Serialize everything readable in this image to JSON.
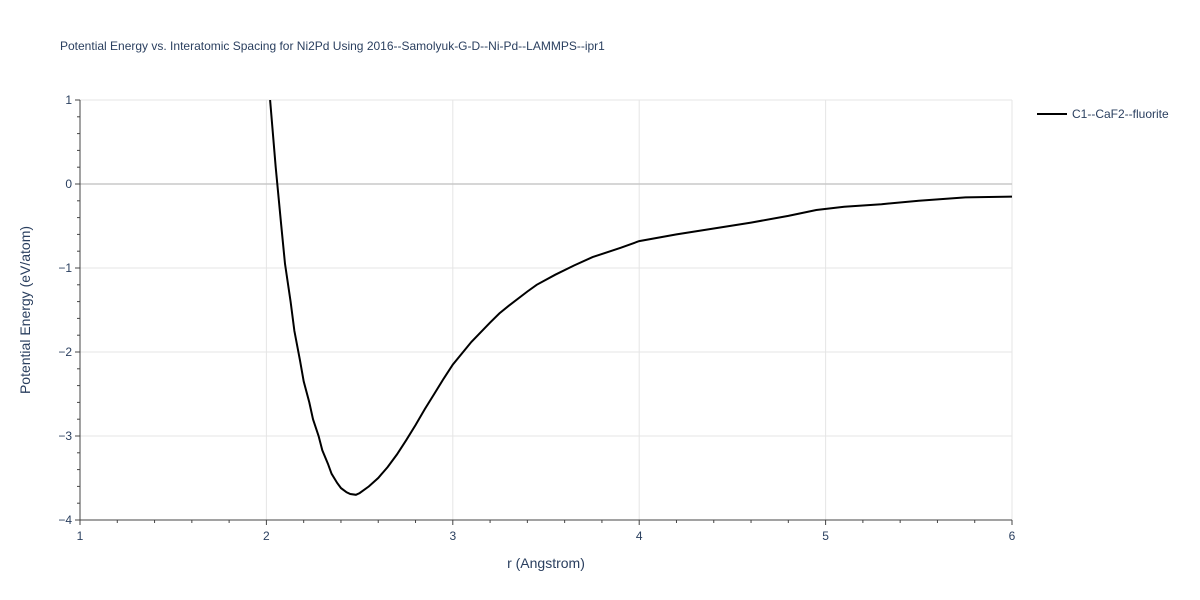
{
  "chart_data": {
    "type": "line",
    "title": "Potential Energy vs. Interatomic Spacing for Ni2Pd Using 2016--Samolyuk-G-D--Ni-Pd--LAMMPS--ipr1",
    "xlabel": "r (Angstrom)",
    "ylabel": "Potential Energy (eV/atom)",
    "xlim": [
      1,
      6
    ],
    "ylim": [
      -4,
      1
    ],
    "x_ticks": [
      1,
      2,
      3,
      4,
      5,
      6
    ],
    "x_tick_labels": [
      "1",
      "2",
      "3",
      "4",
      "5",
      "6"
    ],
    "y_ticks": [
      -4,
      -3,
      -2,
      -1,
      0,
      1
    ],
    "y_tick_labels": [
      "−4",
      "−3",
      "−2",
      "−1",
      "0",
      "1"
    ],
    "grid": true,
    "legend_position": "top-right",
    "series": [
      {
        "name": "C1--CaF2--fluorite",
        "color": "#000000",
        "x": [
          2.02,
          2.05,
          2.08,
          2.1,
          2.13,
          2.15,
          2.18,
          2.2,
          2.23,
          2.25,
          2.28,
          2.3,
          2.33,
          2.35,
          2.38,
          2.4,
          2.43,
          2.45,
          2.48,
          2.5,
          2.55,
          2.6,
          2.65,
          2.7,
          2.75,
          2.8,
          2.85,
          2.9,
          2.95,
          3.0,
          3.1,
          3.2,
          3.25,
          3.3,
          3.4,
          3.45,
          3.55,
          3.65,
          3.75,
          3.9,
          4.0,
          4.2,
          4.4,
          4.6,
          4.8,
          4.95,
          5.1,
          5.3,
          5.5,
          5.75,
          6.0
        ],
        "y": [
          1.0,
          0.2,
          -0.5,
          -0.95,
          -1.4,
          -1.75,
          -2.1,
          -2.35,
          -2.6,
          -2.8,
          -3.0,
          -3.17,
          -3.33,
          -3.45,
          -3.56,
          -3.62,
          -3.67,
          -3.69,
          -3.7,
          -3.68,
          -3.6,
          -3.5,
          -3.37,
          -3.22,
          -3.05,
          -2.87,
          -2.68,
          -2.5,
          -2.32,
          -2.15,
          -1.88,
          -1.65,
          -1.54,
          -1.45,
          -1.28,
          -1.2,
          -1.08,
          -0.97,
          -0.87,
          -0.76,
          -0.68,
          -0.6,
          -0.53,
          -0.46,
          -0.38,
          -0.31,
          -0.27,
          -0.24,
          -0.2,
          -0.16,
          -0.15
        ]
      }
    ]
  }
}
